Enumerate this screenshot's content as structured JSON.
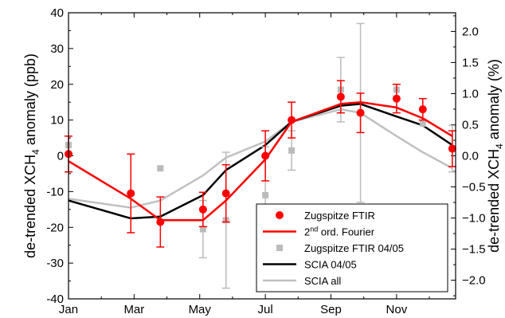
{
  "chart_data": {
    "type": "line",
    "title": "",
    "x_ticks": [
      "Jan",
      "Mar",
      "May",
      "Jul",
      "Sep",
      "Nov"
    ],
    "y_left": {
      "label_parts": [
        "de-trended XCH",
        "4",
        " anomaly (ppb)"
      ],
      "range": [
        -40,
        40
      ],
      "ticks": [
        "-40",
        "-30",
        "-20",
        "-10",
        "0",
        "10",
        "20",
        "30",
        "40"
      ]
    },
    "y_right": {
      "label_parts": [
        "de-trended XCH",
        "4",
        " anomaly (%)"
      ],
      "range": [
        -2.3,
        2.3
      ],
      "ticks": [
        "-2.0",
        "-1.5",
        "-1.0",
        "-0.5",
        "0.0",
        "0.5",
        "1.0",
        "1.5",
        "2.0"
      ]
    },
    "x_month_range": [
      1,
      12.8
    ],
    "series": [
      {
        "name": "Zugspitze FTIR",
        "kind": "points_with_error",
        "color": "#ff0000",
        "x": [
          1.0,
          2.9,
          3.8,
          5.1,
          5.8,
          7.0,
          7.8,
          9.3,
          9.9,
          11.0,
          11.8,
          12.7
        ],
        "y": [
          0.5,
          -10.5,
          -18.5,
          -15.0,
          -10.5,
          0.0,
          10.0,
          16.5,
          12.0,
          16.0,
          13.0,
          2.0
        ],
        "err": [
          5.0,
          11.0,
          7.0,
          4.8,
          8.0,
          7.0,
          5.0,
          4.5,
          5.5,
          4.0,
          3.0,
          5.0
        ]
      },
      {
        "name": "2nd ord. Fourier",
        "legend_parts": [
          "2",
          "nd",
          " ord. Fourier"
        ],
        "kind": "line",
        "color": "#ff0000",
        "x": [
          1.0,
          2.9,
          3.8,
          5.1,
          5.8,
          7.0,
          7.8,
          9.3,
          9.9,
          11.0,
          11.8,
          12.7
        ],
        "y": [
          -1.5,
          -12.0,
          -18.0,
          -18.0,
          -12.5,
          -1.0,
          9.5,
          14.5,
          15.0,
          13.5,
          10.5,
          5.5
        ]
      },
      {
        "name": "Zugspitze FTIR 04/05",
        "kind": "squares_with_error",
        "color": "#bbbbbb",
        "x": [
          1.0,
          3.8,
          5.1,
          5.8,
          7.0,
          7.8,
          9.3,
          9.9,
          11.0,
          11.8,
          12.7
        ],
        "y": [
          3.0,
          -3.5,
          -20.5,
          -18.0,
          -11.0,
          1.5,
          18.5,
          12.0,
          18.5,
          9.0,
          2.0
        ],
        "err": [
          0,
          0,
          8.0,
          19.0,
          13.5,
          5.5,
          9.0,
          25.0,
          0,
          0,
          6.5
        ]
      },
      {
        "name": "SCIA 04/05",
        "kind": "line",
        "color": "#000000",
        "x": [
          1.0,
          2.9,
          3.8,
          5.1,
          5.8,
          7.0,
          7.8,
          9.3,
          9.9,
          11.0,
          11.8,
          12.7
        ],
        "y": [
          -12.5,
          -17.5,
          -17.0,
          -11.0,
          -4.0,
          3.0,
          9.5,
          14.0,
          14.5,
          11.0,
          8.5,
          3.0
        ]
      },
      {
        "name": "SCIA all",
        "kind": "line",
        "color": "#c0c0c0",
        "x": [
          1.0,
          2.9,
          3.8,
          5.1,
          5.8,
          7.0,
          7.8,
          9.3,
          9.9,
          11.0,
          11.8,
          12.7
        ],
        "y": [
          -12.0,
          -14.5,
          -12.5,
          -5.5,
          -0.5,
          4.0,
          9.5,
          13.0,
          12.0,
          5.5,
          1.0,
          -3.5
        ]
      }
    ],
    "legend": {
      "position": "bottom-right",
      "entries": [
        "Zugspitze FTIR",
        "2nd ord. Fourier",
        "Zugspitze FTIR 04/05",
        "SCIA 04/05",
        "SCIA all"
      ]
    }
  }
}
